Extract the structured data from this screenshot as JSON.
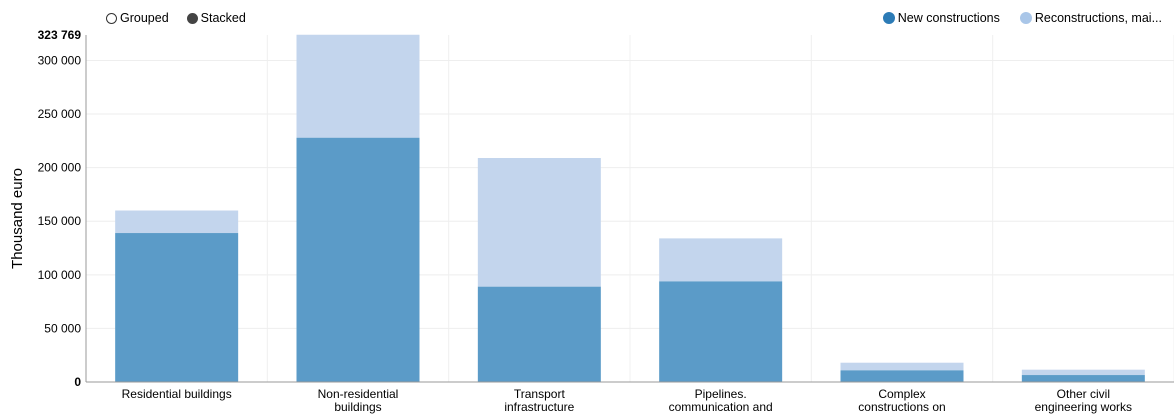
{
  "controls": {
    "grouped_label": "Grouped",
    "stacked_label": "Stacked",
    "selected": "stacked"
  },
  "legend": {
    "items": [
      {
        "label": "New constructions",
        "color": "#2c7bb6"
      },
      {
        "label": "Reconstructions, mai...",
        "color": "#a9c6e8"
      }
    ]
  },
  "chart_data": {
    "type": "bar",
    "stacked": true,
    "ylabel": "Thousand euro",
    "ylim": [
      0,
      323769
    ],
    "ymax_label": "323 769",
    "yticks": [
      0,
      50000,
      100000,
      150000,
      200000,
      250000,
      300000
    ],
    "ytick_labels": [
      "0",
      "50 000",
      "100 000",
      "150 000",
      "200 000",
      "250 000",
      "300 000"
    ],
    "grid": true,
    "categories": [
      [
        "Residential buildings"
      ],
      [
        "Non-residential",
        "buildings"
      ],
      [
        "Transport",
        "infrastructure"
      ],
      [
        "Pipelines.",
        "communication and"
      ],
      [
        "Complex",
        "constructions on"
      ],
      [
        "Other civil",
        "engineering works"
      ]
    ],
    "series": [
      {
        "name": "New constructions",
        "color": "#5b9bc8",
        "values": [
          139000,
          228000,
          89000,
          94000,
          11000,
          6500
        ]
      },
      {
        "name": "Reconstructions, mai...",
        "color": "#c3d5ed",
        "values": [
          21000,
          96000,
          120000,
          40000,
          7000,
          5000
        ]
      }
    ]
  }
}
